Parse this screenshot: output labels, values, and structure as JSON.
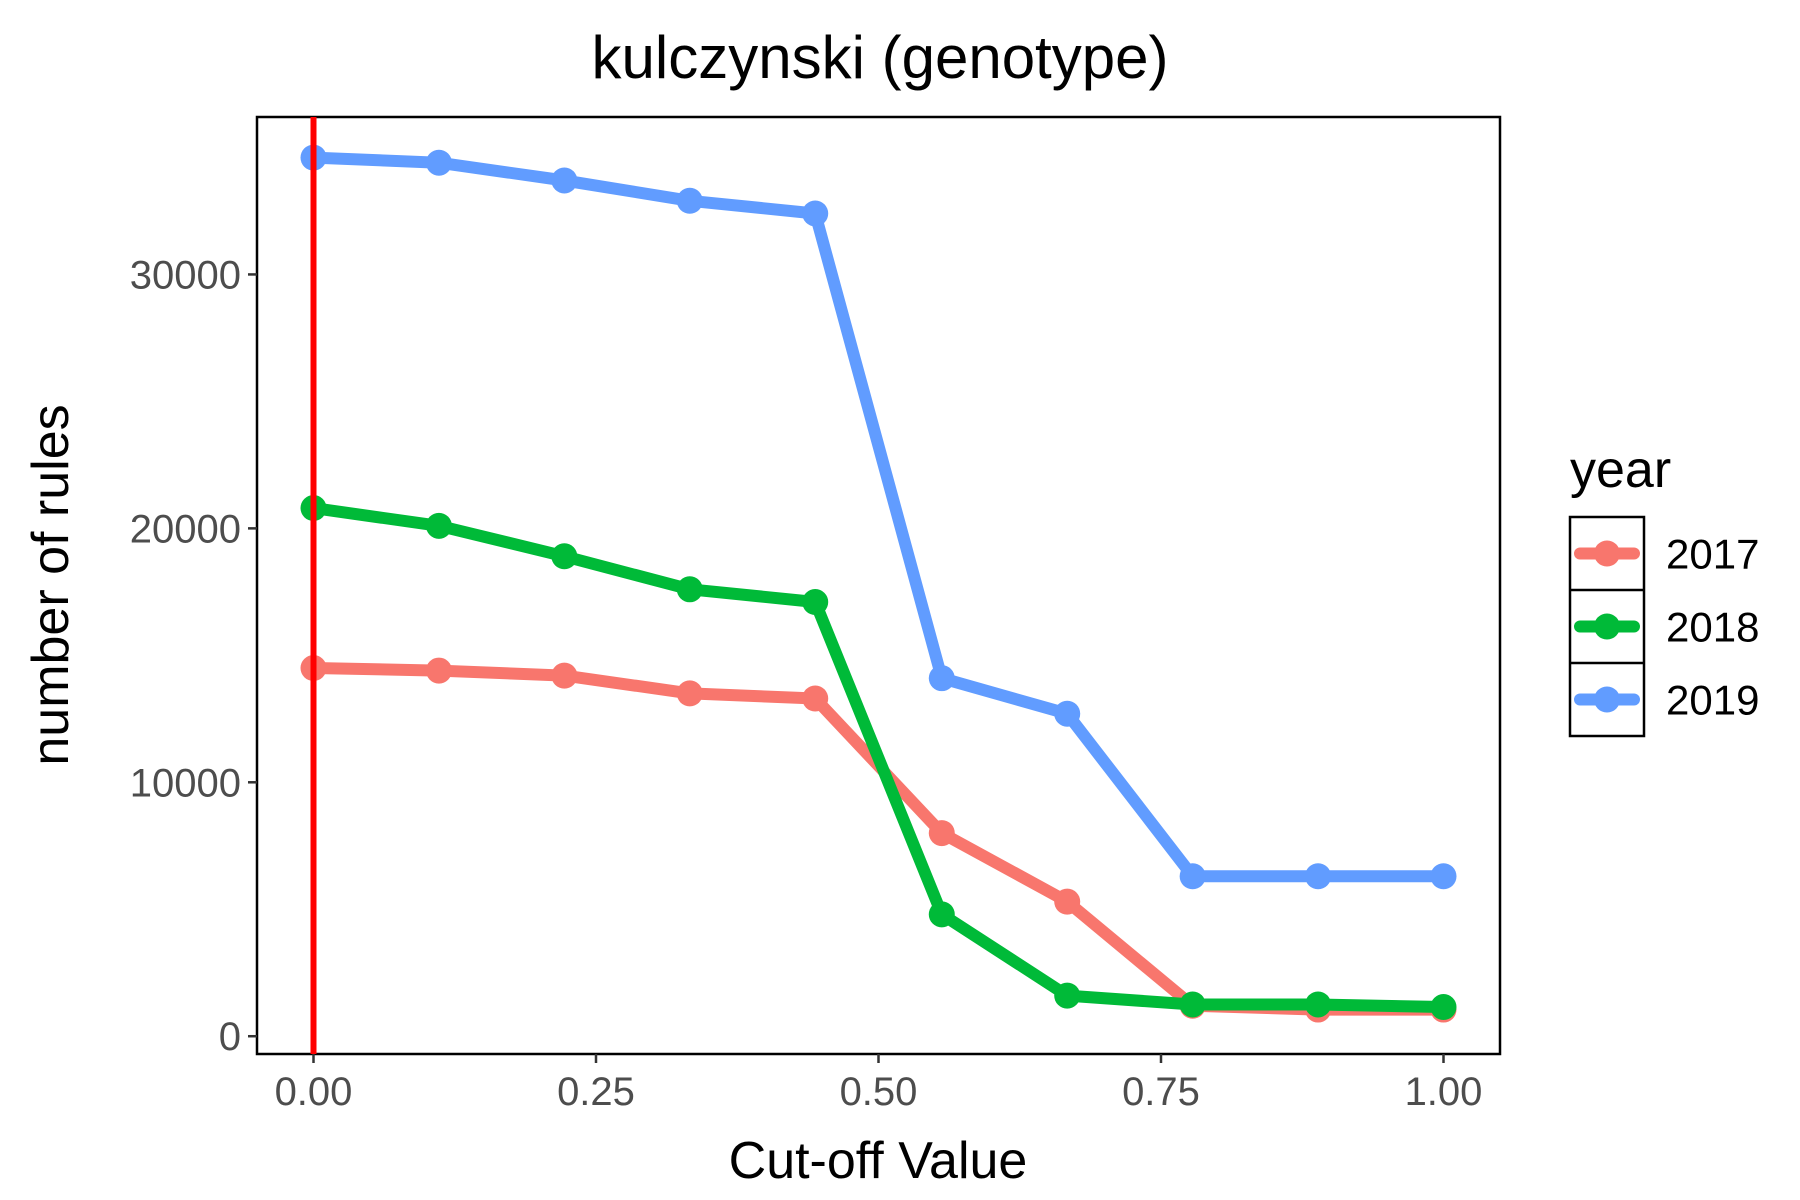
{
  "chart_data": {
    "type": "line",
    "title": "kulczynski (genotype)",
    "xlabel": "Cut-off Value",
    "ylabel": "number of rules",
    "xlim": [
      -0.05,
      1.05
    ],
    "ylim": [
      -700,
      36200
    ],
    "x_ticks": [
      0.0,
      0.25,
      0.5,
      0.75,
      1.0
    ],
    "x_tick_labels": [
      "0.00",
      "0.25",
      "0.50",
      "0.75",
      "1.00"
    ],
    "y_ticks": [
      0,
      10000,
      20000,
      30000
    ],
    "y_tick_labels": [
      "0",
      "10000",
      "20000",
      "30000"
    ],
    "grid": false,
    "legend": {
      "title": "year",
      "position": "right"
    },
    "vertical_reference_line": {
      "x": 0.0,
      "color": "#FF0000"
    },
    "x": [
      0.0,
      0.111,
      0.222,
      0.333,
      0.444,
      0.556,
      0.667,
      0.778,
      0.889,
      1.0
    ],
    "series": [
      {
        "name": "2017",
        "color": "#F8766D",
        "values": [
          14500,
          14400,
          14200,
          13500,
          13300,
          8000,
          5300,
          1200,
          1050,
          1050
        ]
      },
      {
        "name": "2018",
        "color": "#00BA38",
        "values": [
          20800,
          20100,
          18900,
          17600,
          17100,
          4800,
          1600,
          1250,
          1250,
          1150
        ]
      },
      {
        "name": "2019",
        "color": "#619CFF",
        "values": [
          34600,
          34400,
          33700,
          32900,
          32400,
          14100,
          12700,
          6300,
          6300,
          6300
        ]
      }
    ]
  }
}
